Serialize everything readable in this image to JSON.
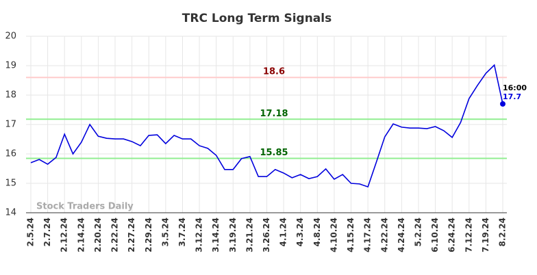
{
  "chart_data": {
    "type": "line",
    "title": "TRC Long Term Signals",
    "categories": [
      "2.5.24",
      null,
      "2.7.24",
      null,
      "2.12.24",
      null,
      "2.14.24",
      null,
      "2.20.24",
      null,
      "2.22.24",
      null,
      "2.27.24",
      null,
      "2.29.24",
      null,
      "3.5.24",
      null,
      "3.7.24",
      null,
      "3.12.24",
      null,
      "3.14.24",
      null,
      "3.19.24",
      null,
      "3.21.24",
      null,
      "3.26.24",
      null,
      "4.1.24",
      null,
      "4.3.24",
      null,
      "4.8.24",
      null,
      "4.10.24",
      null,
      "4.15.24",
      null,
      "4.17.24",
      null,
      "4.22.24",
      null,
      "4.24.24",
      null,
      "5.2.24",
      null,
      "6.10.24",
      null,
      "6.24.24",
      null,
      "7.12.24",
      null,
      "7.19.24",
      null,
      "8.2.24"
    ],
    "series": [
      {
        "name": "TRC",
        "color": "#0000dd",
        "values": [
          15.7,
          15.81,
          15.65,
          15.88,
          16.67,
          16.0,
          16.4,
          17.0,
          16.6,
          16.53,
          16.51,
          16.51,
          16.42,
          16.28,
          16.63,
          16.65,
          16.35,
          16.63,
          16.51,
          16.51,
          16.28,
          16.19,
          15.95,
          15.47,
          15.47,
          15.84,
          15.91,
          15.23,
          15.23,
          15.47,
          15.35,
          15.19,
          15.3,
          15.16,
          15.23,
          15.49,
          15.14,
          15.3,
          15.0,
          14.98,
          14.88,
          15.72,
          16.58,
          17.02,
          16.91,
          16.88,
          16.88,
          16.86,
          16.93,
          16.79,
          16.56,
          17.07,
          17.88,
          18.33,
          18.74,
          19.02,
          17.7
        ]
      }
    ],
    "ylim": [
      14,
      20
    ],
    "yticks": [
      14,
      15,
      16,
      17,
      18,
      19,
      20
    ],
    "grid": true,
    "hlines": [
      {
        "value": 18.6,
        "color": "#ffcccc",
        "label_color": "#8b0000"
      },
      {
        "value": 17.18,
        "color": "#90ee90",
        "label_color": "#006400"
      },
      {
        "value": 15.85,
        "color": "#90ee90",
        "label_color": "#006400"
      }
    ],
    "last_point_time": "16:00",
    "watermark": "Stock Traders Daily"
  }
}
